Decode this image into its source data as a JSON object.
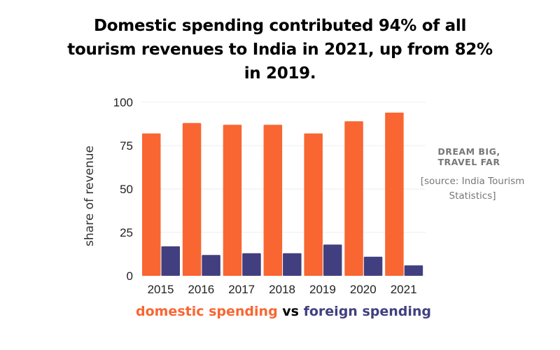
{
  "title": "Domestic spending contributed 94% of all tourism revenues to India in 2021, up from 82% in 2019.",
  "brand": "DREAM BIG, TRAVEL FAR",
  "source": "[source: India Tourism Statistics]",
  "chart_data": {
    "type": "bar",
    "title": "Domestic spending contributed 94% of all tourism revenues to India in 2021, up from 82% in 2019.",
    "categories": [
      "2015",
      "2016",
      "2017",
      "2018",
      "2019",
      "2020",
      "2021"
    ],
    "series": [
      {
        "name": "domestic spending",
        "color": "#f96632",
        "values": [
          82,
          88,
          87,
          87,
          82,
          89,
          94
        ]
      },
      {
        "name": "foreign spending",
        "color": "#423f80",
        "values": [
          17,
          12,
          13,
          13,
          18,
          11,
          6
        ]
      }
    ],
    "xlabel": "",
    "ylabel": "share of revenue",
    "ylim": [
      0,
      100
    ],
    "yticks": [
      "0",
      "25",
      "50",
      "75",
      "100"
    ],
    "grid": true,
    "legend": {
      "text_parts": [
        "domestic spending",
        " vs ",
        "foreign spending"
      ],
      "placement": "bottom"
    }
  }
}
